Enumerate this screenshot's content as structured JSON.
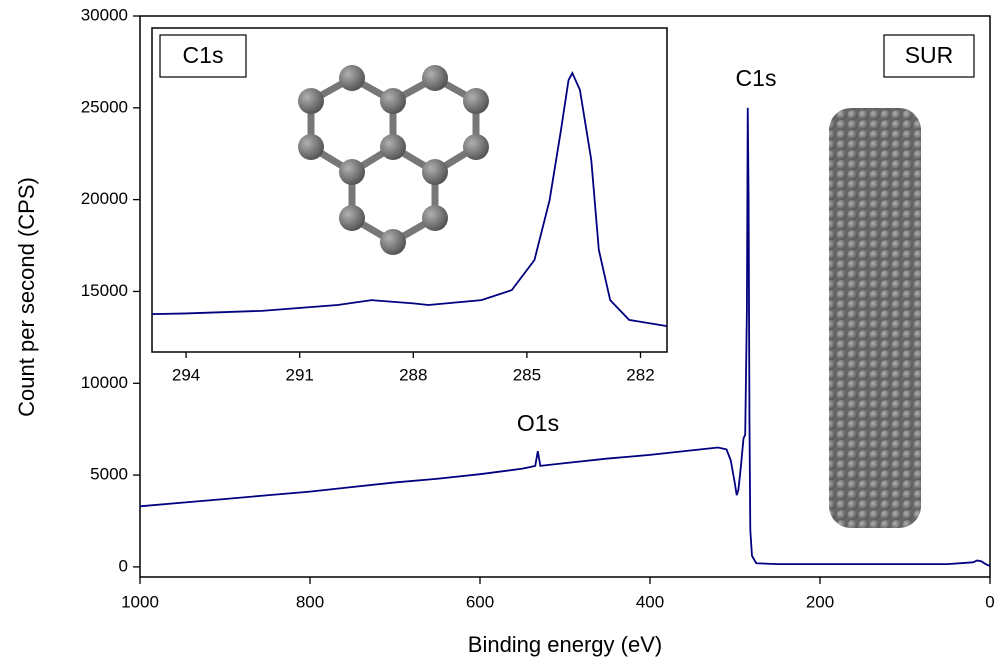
{
  "chart_data": [
    {
      "type": "line",
      "x_label": "Binding energy (eV)",
      "y_label": "Count per second (CPS)",
      "annotations": [
        "C1s",
        "O1s",
        "SUR"
      ],
      "x": [
        1000,
        950,
        900,
        850,
        800,
        750,
        700,
        650,
        600,
        550,
        540,
        535,
        532,
        529,
        520,
        500,
        450,
        400,
        350,
        320,
        310,
        305,
        300,
        298,
        296,
        293,
        290,
        288,
        286,
        285,
        284,
        283,
        282,
        280,
        275,
        250,
        200,
        150,
        100,
        50,
        20,
        15,
        10,
        5,
        0
      ],
      "series": [
        {
          "color": "#000080",
          "values": [
            3300,
            3500,
            3700,
            3900,
            4100,
            4350,
            4600,
            4800,
            5050,
            5350,
            5450,
            5500,
            6300,
            5500,
            5550,
            5650,
            5900,
            6100,
            6350,
            6500,
            6400,
            5800,
            4500,
            3900,
            4200,
            5500,
            7000,
            7200,
            14000,
            25000,
            20000,
            8000,
            2000,
            600,
            200,
            150,
            150,
            150,
            150,
            150,
            250,
            350,
            300,
            150,
            50
          ]
        }
      ],
      "xlim": [
        1000,
        0
      ],
      "ylim": [
        -550,
        30000
      ],
      "xticks": [
        1000,
        800,
        600,
        400,
        200,
        0
      ],
      "yticks": [
        0,
        5000,
        10000,
        15000,
        20000,
        25000,
        30000
      ]
    },
    {
      "type": "line",
      "annotations": [
        "C1s"
      ],
      "x": [
        294.9,
        294,
        292,
        290,
        289.1,
        288,
        287.6,
        286.2,
        285.4,
        284.8,
        284.4,
        284.1,
        283.9,
        283.8,
        283.6,
        283.3,
        283.1,
        282.8,
        282.3,
        281.3
      ],
      "series": [
        {
          "color": "#000080",
          "values": [
            11.7,
            11.9,
            12.7,
            14.5,
            16.0,
            15.0,
            14.5,
            16.0,
            19.1,
            28.4,
            46.9,
            68.5,
            83.9,
            86.1,
            80.9,
            59.3,
            31.5,
            16.0,
            9.9,
            8.0
          ]
        }
      ],
      "xlim": [
        294.9,
        281.3
      ],
      "ylim": [
        0,
        100
      ],
      "xticks": [
        294,
        291,
        288,
        285,
        282
      ]
    }
  ]
}
